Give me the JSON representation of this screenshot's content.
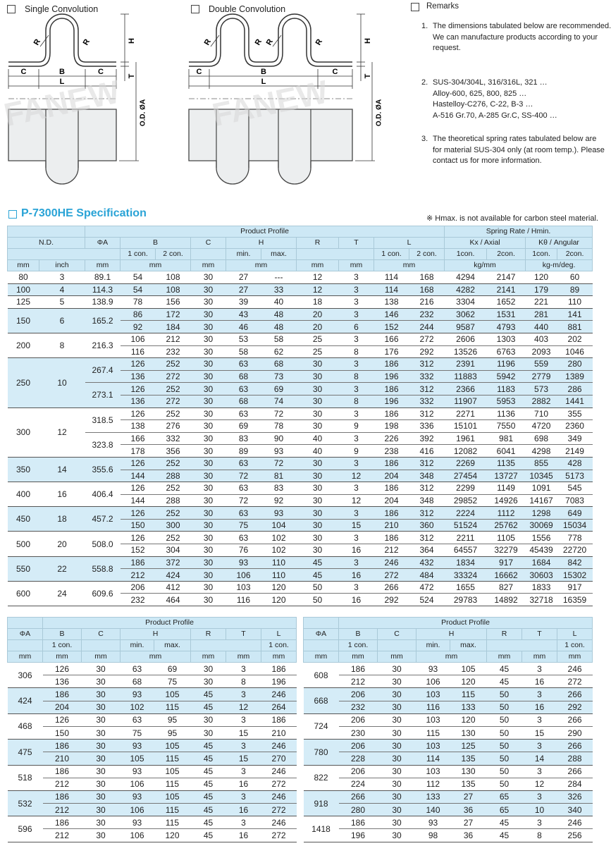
{
  "options": {
    "single": "Single Convolution",
    "double": "Double Convolution",
    "remarks": "Remarks"
  },
  "diagram_labels": {
    "R": "R",
    "H": "H",
    "T": "T",
    "C": "C",
    "B": "B",
    "L": "L",
    "od": "O.D. ØA",
    "watermark": "FANEW"
  },
  "remarks": [
    {
      "number": "1.",
      "lines": [
        "The dimensions tabulated below are recommended.",
        "We can manufacture products according to your",
        "request."
      ]
    },
    {
      "number": "2.",
      "lines": [
        "SUS-304/304L, 316/316L, 321 …",
        "Alloy-600, 625, 800, 825 …",
        "Hastelloy-C276, C-22, B-3 …",
        "A-516 Gr.70, A-285 Gr.C, SS-400 …"
      ]
    },
    {
      "number": "3.",
      "lines": [
        "The theoretical spring rates tabulated below are",
        "for material SUS-304 only (at room temp.). Please",
        "contact us for more information."
      ]
    }
  ],
  "title": "P-7300HE Specification",
  "note": "※ Hmax. is not available for carbon steel material.",
  "main_table": {
    "group_header": "Product Profile",
    "spring_header": "Spring Rate  /  Hmin.",
    "columns": [
      "N.D.",
      "ΦA",
      "B",
      "C",
      "H",
      "R",
      "T",
      "L",
      "Kx / Axial",
      "Kθ / Angular"
    ],
    "subheaders": [
      "1 con.",
      "2 con.",
      "min.",
      "max.",
      "1 con.",
      "2 con.",
      "1con.",
      "2con.",
      "1con.",
      "2con."
    ],
    "units": [
      "mm",
      "inch",
      "mm",
      "mm",
      "mm",
      "mm",
      "mm",
      "mm",
      "mm",
      "kg/mm",
      "kg-m/deg."
    ],
    "groups": [
      {
        "nd": "80",
        "inch": "3",
        "parts": [
          {
            "oa": "89.1",
            "rows": [
              [
                "54",
                "108",
                "30",
                "27",
                "---",
                "12",
                "3",
                "114",
                "168",
                "4294",
                "2147",
                "120",
                "60"
              ]
            ]
          }
        ]
      },
      {
        "nd": "100",
        "inch": "4",
        "parts": [
          {
            "oa": "114.3",
            "rows": [
              [
                "54",
                "108",
                "30",
                "27",
                "33",
                "12",
                "3",
                "114",
                "168",
                "4282",
                "2141",
                "179",
                "89"
              ]
            ]
          }
        ]
      },
      {
        "nd": "125",
        "inch": "5",
        "parts": [
          {
            "oa": "138.9",
            "rows": [
              [
                "78",
                "156",
                "30",
                "39",
                "40",
                "18",
                "3",
                "138",
                "216",
                "3304",
                "1652",
                "221",
                "110"
              ]
            ]
          }
        ]
      },
      {
        "nd": "150",
        "inch": "6",
        "parts": [
          {
            "oa": "165.2",
            "rows": [
              [
                "86",
                "172",
                "30",
                "43",
                "48",
                "20",
                "3",
                "146",
                "232",
                "3062",
                "1531",
                "281",
                "141"
              ],
              [
                "92",
                "184",
                "30",
                "46",
                "48",
                "20",
                "6",
                "152",
                "244",
                "9587",
                "4793",
                "440",
                "881"
              ]
            ]
          }
        ]
      },
      {
        "nd": "200",
        "inch": "8",
        "parts": [
          {
            "oa": "216.3",
            "rows": [
              [
                "106",
                "212",
                "30",
                "53",
                "58",
                "25",
                "3",
                "166",
                "272",
                "2606",
                "1303",
                "403",
                "202"
              ],
              [
                "116",
                "232",
                "30",
                "58",
                "62",
                "25",
                "8",
                "176",
                "292",
                "13526",
                "6763",
                "2093",
                "1046"
              ]
            ]
          }
        ]
      },
      {
        "nd": "250",
        "inch": "10",
        "parts": [
          {
            "oa": "267.4",
            "rows": [
              [
                "126",
                "252",
                "30",
                "63",
                "68",
                "30",
                "3",
                "186",
                "312",
                "2391",
                "1196",
                "559",
                "280"
              ],
              [
                "136",
                "272",
                "30",
                "68",
                "73",
                "30",
                "8",
                "196",
                "332",
                "11883",
                "5942",
                "2779",
                "1389"
              ]
            ]
          },
          {
            "oa": "273.1",
            "rows": [
              [
                "126",
                "252",
                "30",
                "63",
                "69",
                "30",
                "3",
                "186",
                "312",
                "2366",
                "1183",
                "573",
                "286"
              ],
              [
                "136",
                "272",
                "30",
                "68",
                "74",
                "30",
                "8",
                "196",
                "332",
                "11907",
                "5953",
                "2882",
                "1441"
              ]
            ]
          }
        ]
      },
      {
        "nd": "300",
        "inch": "12",
        "parts": [
          {
            "oa": "318.5",
            "rows": [
              [
                "126",
                "252",
                "30",
                "63",
                "72",
                "30",
                "3",
                "186",
                "312",
                "2271",
                "1136",
                "710",
                "355"
              ],
              [
                "138",
                "276",
                "30",
                "69",
                "78",
                "30",
                "9",
                "198",
                "336",
                "15101",
                "7550",
                "4720",
                "2360"
              ]
            ]
          },
          {
            "oa": "323.8",
            "rows": [
              [
                "166",
                "332",
                "30",
                "83",
                "90",
                "40",
                "3",
                "226",
                "392",
                "1961",
                "981",
                "698",
                "349"
              ],
              [
                "178",
                "356",
                "30",
                "89",
                "93",
                "40",
                "9",
                "238",
                "416",
                "12082",
                "6041",
                "4298",
                "2149"
              ]
            ]
          }
        ]
      },
      {
        "nd": "350",
        "inch": "14",
        "parts": [
          {
            "oa": "355.6",
            "rows": [
              [
                "126",
                "252",
                "30",
                "63",
                "72",
                "30",
                "3",
                "186",
                "312",
                "2269",
                "1135",
                "855",
                "428"
              ],
              [
                "144",
                "288",
                "30",
                "72",
                "81",
                "30",
                "12",
                "204",
                "348",
                "27454",
                "13727",
                "10345",
                "5173"
              ]
            ]
          }
        ]
      },
      {
        "nd": "400",
        "inch": "16",
        "parts": [
          {
            "oa": "406.4",
            "rows": [
              [
                "126",
                "252",
                "30",
                "63",
                "83",
                "30",
                "3",
                "186",
                "312",
                "2299",
                "1149",
                "1091",
                "545"
              ],
              [
                "144",
                "288",
                "30",
                "72",
                "92",
                "30",
                "12",
                "204",
                "348",
                "29852",
                "14926",
                "14167",
                "7083"
              ]
            ]
          }
        ]
      },
      {
        "nd": "450",
        "inch": "18",
        "parts": [
          {
            "oa": "457.2",
            "rows": [
              [
                "126",
                "252",
                "30",
                "63",
                "93",
                "30",
                "3",
                "186",
                "312",
                "2224",
                "1112",
                "1298",
                "649"
              ],
              [
                "150",
                "300",
                "30",
                "75",
                "104",
                "30",
                "15",
                "210",
                "360",
                "51524",
                "25762",
                "30069",
                "15034"
              ]
            ]
          }
        ]
      },
      {
        "nd": "500",
        "inch": "20",
        "parts": [
          {
            "oa": "508.0",
            "rows": [
              [
                "126",
                "252",
                "30",
                "63",
                "102",
                "30",
                "3",
                "186",
                "312",
                "2211",
                "1105",
                "1556",
                "778"
              ],
              [
                "152",
                "304",
                "30",
                "76",
                "102",
                "30",
                "16",
                "212",
                "364",
                "64557",
                "32279",
                "45439",
                "22720"
              ]
            ]
          }
        ]
      },
      {
        "nd": "550",
        "inch": "22",
        "parts": [
          {
            "oa": "558.8",
            "rows": [
              [
                "186",
                "372",
                "30",
                "93",
                "110",
                "45",
                "3",
                "246",
                "432",
                "1834",
                "917",
                "1684",
                "842"
              ],
              [
                "212",
                "424",
                "30",
                "106",
                "110",
                "45",
                "16",
                "272",
                "484",
                "33324",
                "16662",
                "30603",
                "15302"
              ]
            ]
          }
        ]
      },
      {
        "nd": "600",
        "inch": "24",
        "parts": [
          {
            "oa": "609.6",
            "rows": [
              [
                "206",
                "412",
                "30",
                "103",
                "120",
                "50",
                "3",
                "266",
                "472",
                "1655",
                "827",
                "1833",
                "917"
              ],
              [
                "232",
                "464",
                "30",
                "116",
                "120",
                "50",
                "16",
                "292",
                "524",
                "29783",
                "14892",
                "32718",
                "16359"
              ]
            ]
          }
        ]
      }
    ]
  },
  "bottom_tables": [
    {
      "header": "Product Profile",
      "columns": [
        "ΦA",
        "B",
        "C",
        "H",
        "R",
        "T",
        "L"
      ],
      "subheaders": [
        "1 con.",
        "min.",
        "max.",
        "1 con."
      ],
      "units": [
        "mm",
        "mm",
        "mm",
        "mm",
        "mm",
        "mm",
        "mm"
      ],
      "groups": [
        {
          "oa": "306",
          "rows": [
            [
              "126",
              "30",
              "63",
              "69",
              "30",
              "3",
              "186"
            ],
            [
              "136",
              "30",
              "68",
              "75",
              "30",
              "8",
              "196"
            ]
          ]
        },
        {
          "oa": "424",
          "rows": [
            [
              "186",
              "30",
              "93",
              "105",
              "45",
              "3",
              "246"
            ],
            [
              "204",
              "30",
              "102",
              "115",
              "45",
              "12",
              "264"
            ]
          ]
        },
        {
          "oa": "468",
          "rows": [
            [
              "126",
              "30",
              "63",
              "95",
              "30",
              "3",
              "186"
            ],
            [
              "150",
              "30",
              "75",
              "95",
              "30",
              "15",
              "210"
            ]
          ]
        },
        {
          "oa": "475",
          "rows": [
            [
              "186",
              "30",
              "93",
              "105",
              "45",
              "3",
              "246"
            ],
            [
              "210",
              "30",
              "105",
              "115",
              "45",
              "15",
              "270"
            ]
          ]
        },
        {
          "oa": "518",
          "rows": [
            [
              "186",
              "30",
              "93",
              "105",
              "45",
              "3",
              "246"
            ],
            [
              "212",
              "30",
              "106",
              "115",
              "45",
              "16",
              "272"
            ]
          ]
        },
        {
          "oa": "532",
          "rows": [
            [
              "186",
              "30",
              "93",
              "105",
              "45",
              "3",
              "246"
            ],
            [
              "212",
              "30",
              "106",
              "115",
              "45",
              "16",
              "272"
            ]
          ]
        },
        {
          "oa": "596",
          "rows": [
            [
              "186",
              "30",
              "93",
              "115",
              "45",
              "3",
              "246"
            ],
            [
              "212",
              "30",
              "106",
              "120",
              "45",
              "16",
              "272"
            ]
          ]
        }
      ]
    },
    {
      "header": "Product Profile",
      "columns": [
        "ΦA",
        "B",
        "C",
        "H",
        "R",
        "T",
        "L"
      ],
      "subheaders": [
        "1 con.",
        "min.",
        "max.",
        "1 con."
      ],
      "units": [
        "mm",
        "mm",
        "mm",
        "mm",
        "mm",
        "mm",
        "mm"
      ],
      "groups": [
        {
          "oa": "608",
          "rows": [
            [
              "186",
              "30",
              "93",
              "105",
              "45",
              "3",
              "246"
            ],
            [
              "212",
              "30",
              "106",
              "120",
              "45",
              "16",
              "272"
            ]
          ]
        },
        {
          "oa": "668",
          "rows": [
            [
              "206",
              "30",
              "103",
              "115",
              "50",
              "3",
              "266"
            ],
            [
              "232",
              "30",
              "116",
              "133",
              "50",
              "16",
              "292"
            ]
          ]
        },
        {
          "oa": "724",
          "rows": [
            [
              "206",
              "30",
              "103",
              "120",
              "50",
              "3",
              "266"
            ],
            [
              "230",
              "30",
              "115",
              "130",
              "50",
              "15",
              "290"
            ]
          ]
        },
        {
          "oa": "780",
          "rows": [
            [
              "206",
              "30",
              "103",
              "125",
              "50",
              "3",
              "266"
            ],
            [
              "228",
              "30",
              "114",
              "135",
              "50",
              "14",
              "288"
            ]
          ]
        },
        {
          "oa": "822",
          "rows": [
            [
              "206",
              "30",
              "103",
              "130",
              "50",
              "3",
              "266"
            ],
            [
              "224",
              "30",
              "112",
              "135",
              "50",
              "12",
              "284"
            ]
          ]
        },
        {
          "oa": "918",
          "rows": [
            [
              "266",
              "30",
              "133",
              "27",
              "65",
              "3",
              "326"
            ],
            [
              "280",
              "30",
              "140",
              "36",
              "65",
              "10",
              "340"
            ]
          ]
        },
        {
          "oa": "1418",
          "rows": [
            [
              "186",
              "30",
              "93",
              "27",
              "45",
              "3",
              "246"
            ],
            [
              "196",
              "30",
              "98",
              "36",
              "45",
              "8",
              "256"
            ]
          ]
        }
      ]
    }
  ]
}
